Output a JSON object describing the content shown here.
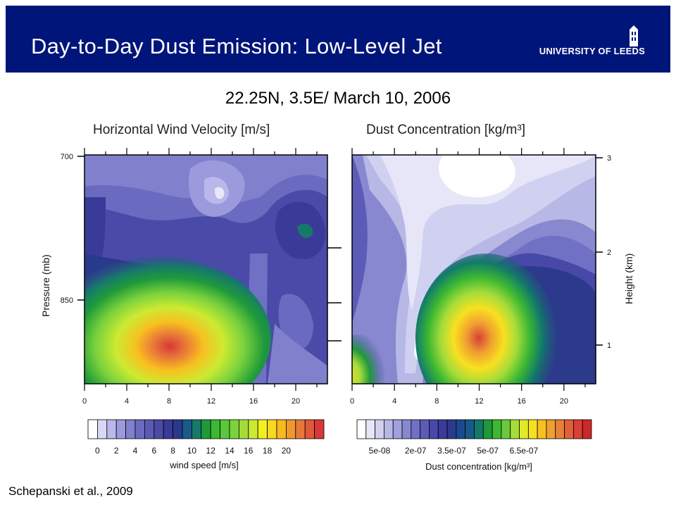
{
  "header": {
    "title": "Day-to-Day Dust Emission: Low-Level Jet",
    "logo_text": "UNIVERSITY OF LEEDS",
    "banner_color": "#00157a"
  },
  "subtitle": "22.25N, 3.5E/ March 10, 2006",
  "citation": "Schepanski et al., 2009",
  "chart_data": [
    {
      "type": "heatmap",
      "title": "Horizontal Wind Velocity [m/s]",
      "xlabel": "",
      "ylabel": "Pressure (mb)",
      "xlim": [
        0,
        23
      ],
      "x_ticks": [
        "0",
        "4",
        "8",
        "12",
        "16",
        "20"
      ],
      "y_ticks": [
        "700",
        "850"
      ],
      "colorbar": {
        "label": "wind speed [m/s]",
        "tick_labels": [
          "0",
          "2",
          "4",
          "6",
          "8",
          "10",
          "12",
          "14",
          "16",
          "18",
          "20"
        ],
        "colors": [
          "#ffffff",
          "#d8d8f4",
          "#b8b8ea",
          "#9a9adc",
          "#8080cc",
          "#6a6ac0",
          "#5a5ab6",
          "#4a4aa8",
          "#3a3a98",
          "#2a3a8a",
          "#1a5a8a",
          "#167a6a",
          "#1f9a3a",
          "#3cb832",
          "#5ac83c",
          "#7ad23c",
          "#a6dc3a",
          "#ccea32",
          "#f0f020",
          "#f8d820",
          "#f8b820",
          "#f09830",
          "#e87838",
          "#e05838",
          "#d83838"
        ]
      },
      "features": [
        {
          "label": "low-level jet maximum",
          "x": 8,
          "y_pressure": 900,
          "value": 20
        }
      ]
    },
    {
      "type": "heatmap",
      "title": "Dust Concentration [kg/m³]",
      "xlabel": "",
      "ylabel": "Height (km)",
      "xlim": [
        0,
        23
      ],
      "x_ticks": [
        "0",
        "4",
        "8",
        "12",
        "16",
        "20"
      ],
      "y_ticks": [
        "1",
        "2",
        "3"
      ],
      "colorbar": {
        "label": "Dust concentration [kg/m³]",
        "tick_labels": [
          "5e-08",
          "2e-07",
          "3.5e-07",
          "5e-07",
          "6.5e-07"
        ],
        "colors": [
          "#ffffff",
          "#e6e6f8",
          "#d0d0f0",
          "#b8b8e6",
          "#a0a0dc",
          "#8888d0",
          "#7070c4",
          "#5c5cb8",
          "#4848a8",
          "#3a3a9a",
          "#2c3a8c",
          "#1a4a90",
          "#165a8a",
          "#127a6a",
          "#1f9a3a",
          "#3cb832",
          "#6ac83c",
          "#a6dc3a",
          "#e0ea28",
          "#f8e020",
          "#f8c020",
          "#f0a030",
          "#e88038",
          "#e06038",
          "#d84038",
          "#cc2828"
        ]
      },
      "features": [
        {
          "label": "dust concentration maximum",
          "x": 11,
          "height_km": 1.0,
          "value": 6.5e-07
        }
      ]
    }
  ]
}
